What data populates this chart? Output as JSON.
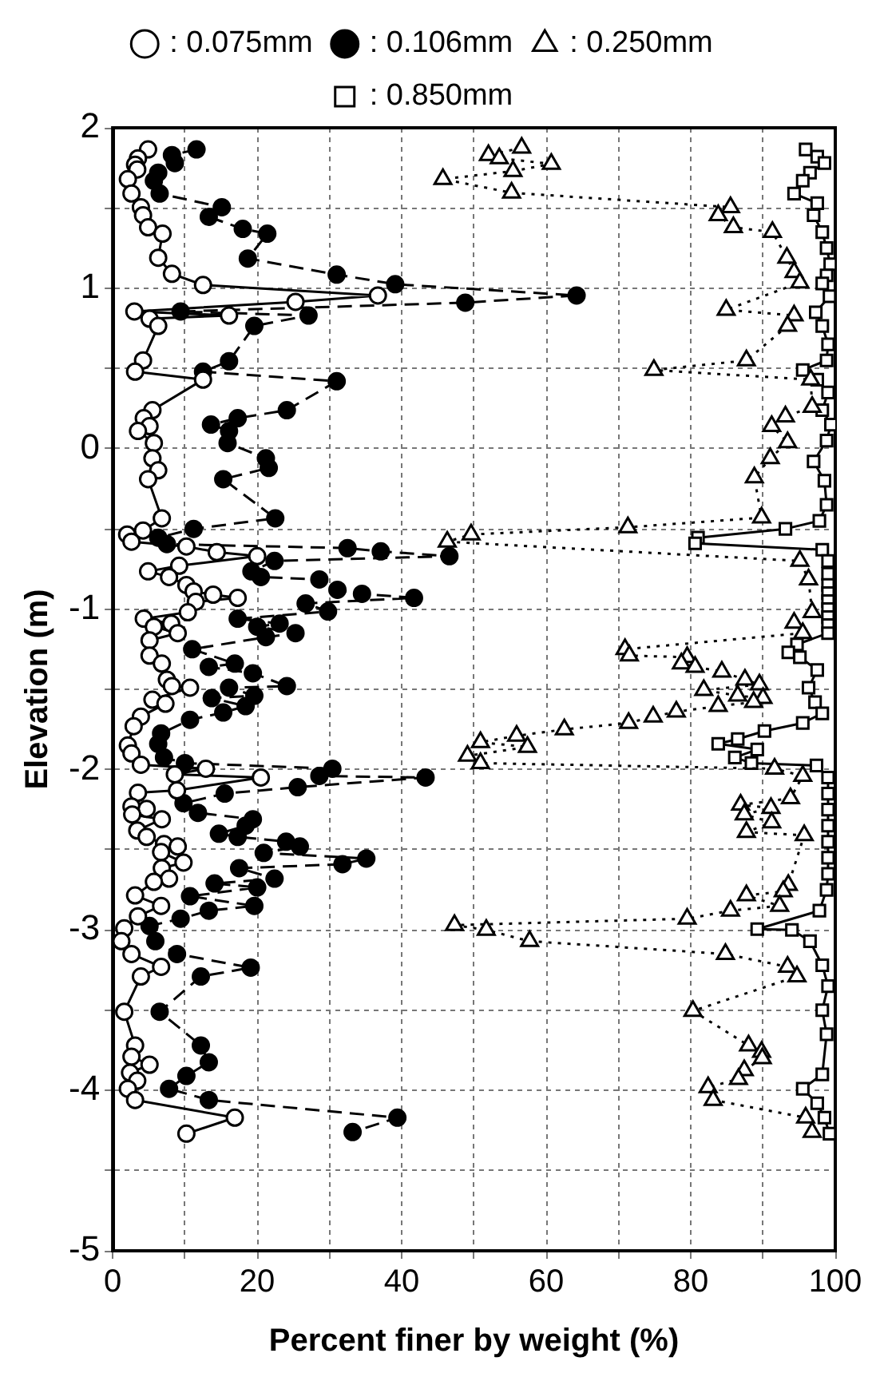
{
  "chart_data": {
    "type": "line",
    "xlabel": "Percent finer by weight (%)",
    "ylabel": "Elevation (m)",
    "xlim": [
      0,
      100
    ],
    "xticks": [
      0,
      {
        "value": 10,
        "label": null
      },
      20,
      {
        "value": 30,
        "label": null
      },
      40,
      {
        "value": 50,
        "label": null
      },
      60,
      {
        "value": 70,
        "label": null
      },
      80,
      {
        "value": 90,
        "label": null
      },
      100
    ],
    "ylim": [
      -5,
      2
    ],
    "yticks": [
      -5,
      {
        "value": -4.5,
        "label": null
      },
      -4,
      {
        "value": -3.5,
        "label": null
      },
      -3,
      {
        "value": -2.5,
        "label": null
      },
      -2,
      {
        "value": -1.5,
        "label": null
      },
      -1,
      {
        "value": -0.5,
        "label": null
      },
      0,
      {
        "value": 0.5,
        "label": null
      },
      1,
      {
        "value": 1.5,
        "label": null
      },
      2
    ],
    "grid": true,
    "legend": "top",
    "series": [
      {
        "name": ": 0.075mm",
        "color": "#ffffff",
        "marker": "circle",
        "line_style": "solid",
        "x": [
          4.9,
          3.5,
          3.1,
          3.4,
          2.1,
          2.6,
          3.9,
          4.2,
          4.9,
          6.9,
          6.3,
          8.2,
          12.5,
          36.7,
          25.3,
          3.0,
          16.1,
          5.1,
          6.3,
          4.2,
          3.1,
          12.5,
          5.5,
          4.3,
          5.1,
          3.5,
          5.7,
          5.5,
          6.3,
          4.9,
          6.8,
          4.2,
          2.0,
          2.6,
          10.2,
          14.4,
          20,
          9.2,
          4.9,
          7.8,
          10.2,
          11.2,
          13.9,
          17.3,
          11.5,
          10.4,
          4.3,
          8.1,
          5.7,
          9.0,
          5.1,
          5.1,
          6.8,
          7.5,
          8.2,
          10.7,
          5.5,
          7.3,
          3.9,
          2.9,
          2.1,
          2.6,
          3.9,
          12.9,
          8.6,
          20.5,
          8.9,
          3.5,
          2.6,
          4.7,
          2.7,
          6.8,
          3.4,
          4.7,
          7.1,
          9.0,
          6.7,
          9.8,
          6.8,
          7.8,
          5.7,
          3.1,
          6.7,
          3.5,
          1.6,
          1.2,
          2.6,
          6.7,
          3.9,
          1.6,
          3.1,
          2.6,
          5.1,
          2.4,
          3.4,
          2.1,
          3.1,
          16.9,
          10.2
        ],
        "values": [
          1.865,
          1.81,
          1.77,
          1.74,
          1.68,
          1.59,
          1.505,
          1.455,
          1.38,
          1.34,
          1.19,
          1.09,
          1.02,
          0.955,
          0.915,
          0.855,
          0.83,
          0.81,
          0.765,
          0.55,
          0.48,
          0.43,
          0.24,
          0.19,
          0.14,
          0.11,
          0.035,
          -0.06,
          -0.135,
          -0.19,
          -0.434,
          -0.51,
          -0.535,
          -0.58,
          -0.61,
          -0.645,
          -0.67,
          -0.73,
          -0.765,
          -0.8,
          -0.85,
          -0.89,
          -0.91,
          -0.93,
          -0.955,
          -1.02,
          -1.06,
          -1.09,
          -1.11,
          -1.15,
          -1.195,
          -1.29,
          -1.34,
          -1.44,
          -1.48,
          -1.49,
          -1.565,
          -1.59,
          -1.67,
          -1.73,
          -1.85,
          -1.9,
          -1.97,
          -1.995,
          -2.03,
          -2.05,
          -2.13,
          -2.145,
          -2.23,
          -2.245,
          -2.28,
          -2.31,
          -2.38,
          -2.42,
          -2.465,
          -2.48,
          -2.515,
          -2.58,
          -2.615,
          -2.68,
          -2.7,
          -2.785,
          -2.85,
          -2.915,
          -2.99,
          -3.07,
          -3.15,
          -3.23,
          -3.29,
          -3.51,
          -3.72,
          -3.79,
          -3.84,
          -3.89,
          -3.94,
          -3.99,
          -4.06,
          -4.17,
          -4.27
        ]
      },
      {
        "name": ": 0.106mm",
        "color": "#000000",
        "marker": "circle",
        "line_style": "dashed",
        "x": [
          11.6,
          8.2,
          8.6,
          6.3,
          5.7,
          6.5,
          15.1,
          13.3,
          18.0,
          21.4,
          18.7,
          31.0,
          39.1,
          64.2,
          48.8,
          9.4,
          27.1,
          19.6,
          16.1,
          12.5,
          31.0,
          24.1,
          17.3,
          13.6,
          16.1,
          15.9,
          21.2,
          21.6,
          15.3,
          22.5,
          11.2,
          6.3,
          7.5,
          32.5,
          37.1,
          46.6,
          22.4,
          19.2,
          20.5,
          28.6,
          31.1,
          34.5,
          41.7,
          26.7,
          29.8,
          17.3,
          23.1,
          20.0,
          25.3,
          21.2,
          11.0,
          16.9,
          13.3,
          19.4,
          24.1,
          16.1,
          19.6,
          13.7,
          18.4,
          15.3,
          10.7,
          6.7,
          6.3,
          7.1,
          10.0,
          30.4,
          28.6,
          43.3,
          25.6,
          15.5,
          9.8,
          11.8,
          19.4,
          18.4,
          14.7,
          17.3,
          24.0,
          25.9,
          20.9,
          35.1,
          31.8,
          17.5,
          22.4,
          14.1,
          20.0,
          10.7,
          19.6,
          13.3,
          9.4,
          5.1,
          5.9,
          8.9,
          19.1,
          12.2,
          6.5,
          12.2,
          13.3,
          10.2,
          7.8,
          13.3,
          39.4,
          33.2
        ],
        "values": [
          1.865,
          1.83,
          1.78,
          1.72,
          1.67,
          1.59,
          1.505,
          1.445,
          1.37,
          1.34,
          1.185,
          1.085,
          1.025,
          0.955,
          0.91,
          0.855,
          0.83,
          0.765,
          0.545,
          0.48,
          0.42,
          0.24,
          0.19,
          0.15,
          0.11,
          0.035,
          -0.06,
          -0.12,
          -0.19,
          -0.434,
          -0.5,
          -0.555,
          -0.595,
          -0.62,
          -0.64,
          -0.67,
          -0.7,
          -0.765,
          -0.8,
          -0.815,
          -0.88,
          -0.905,
          -0.93,
          -0.965,
          -1.015,
          -1.06,
          -1.09,
          -1.11,
          -1.15,
          -1.175,
          -1.25,
          -1.34,
          -1.36,
          -1.4,
          -1.48,
          -1.49,
          -1.54,
          -1.555,
          -1.605,
          -1.645,
          -1.69,
          -1.775,
          -1.84,
          -1.925,
          -1.96,
          -1.995,
          -2.04,
          -2.05,
          -2.11,
          -2.15,
          -2.21,
          -2.27,
          -2.31,
          -2.35,
          -2.4,
          -2.42,
          -2.45,
          -2.48,
          -2.52,
          -2.555,
          -2.59,
          -2.615,
          -2.68,
          -2.71,
          -2.735,
          -2.79,
          -2.85,
          -2.88,
          -2.93,
          -2.975,
          -3.07,
          -3.15,
          -3.235,
          -3.29,
          -3.51,
          -3.72,
          -3.825,
          -3.91,
          -3.99,
          -4.06,
          -4.17,
          -4.26
        ]
      },
      {
        "name": ": 0.250mm",
        "color": "#ffffff",
        "marker": "triangle",
        "line_style": "dotted",
        "x": [
          56.6,
          52.0,
          53.5,
          60.7,
          55.4,
          45.7,
          55.2,
          85.5,
          83.8,
          85.9,
          91.3,
          93.3,
          94.3,
          95.1,
          84.9,
          94.3,
          93.4,
          87.7,
          74.9,
          96.6,
          96.8,
          93.1,
          91.2,
          93.4,
          91.0,
          88.8,
          89.8,
          71.3,
          49.6,
          46.3,
          95.1,
          96.3,
          96.8,
          94.3,
          95.5,
          70.9,
          71.5,
          79.5,
          78.7,
          80.6,
          84.3,
          87.5,
          89.5,
          81.8,
          86.5,
          90.0,
          88.7,
          83.8,
          78.0,
          74.8,
          71.4,
          62.5,
          55.9,
          50.9,
          57.4,
          49.1,
          50.9,
          91.6,
          95.5,
          93.8,
          86.9,
          91.1,
          87.4,
          91.2,
          87.7,
          95.7,
          93.5,
          92.8,
          87.7,
          92.3,
          85.5,
          79.5,
          47.3,
          51.7,
          57.7,
          84.8,
          93.4,
          94.7,
          80.3,
          88.0,
          89.8,
          89.9,
          87.4,
          86.6,
          82.4,
          83.1,
          95.9,
          96.8
        ],
        "values": [
          1.875,
          1.83,
          1.81,
          1.775,
          1.73,
          1.68,
          1.595,
          1.505,
          1.455,
          1.38,
          1.35,
          1.19,
          1.1,
          1.035,
          0.865,
          0.83,
          0.765,
          0.55,
          0.49,
          0.43,
          0.26,
          0.2,
          0.14,
          0.04,
          -0.06,
          -0.18,
          -0.43,
          -0.49,
          -0.535,
          -0.58,
          -0.7,
          -0.815,
          -1.02,
          -1.085,
          -1.15,
          -1.25,
          -1.29,
          -1.3,
          -1.34,
          -1.36,
          -1.39,
          -1.44,
          -1.47,
          -1.505,
          -1.54,
          -1.555,
          -1.58,
          -1.605,
          -1.64,
          -1.67,
          -1.71,
          -1.75,
          -1.79,
          -1.83,
          -1.86,
          -1.915,
          -1.96,
          -1.995,
          -2.04,
          -2.18,
          -2.22,
          -2.24,
          -2.28,
          -2.33,
          -2.39,
          -2.41,
          -2.72,
          -2.76,
          -2.785,
          -2.85,
          -2.88,
          -2.93,
          -2.97,
          -3.0,
          -3.07,
          -3.15,
          -3.23,
          -3.29,
          -3.505,
          -3.72,
          -3.76,
          -3.8,
          -3.875,
          -3.93,
          -3.98,
          -4.06,
          -4.17,
          -4.26
        ]
      },
      {
        "name": ": 0.850mm",
        "color": "#ffffff",
        "marker": "square",
        "line_style": "solid",
        "x": [
          95.9,
          97.5,
          98.5,
          96.5,
          95.5,
          94.3,
          97.5,
          97.0,
          98.2,
          98.8,
          99.3,
          98.8,
          98.2,
          99.2,
          97.3,
          98.2,
          99,
          98.8,
          95.5,
          97.5,
          99,
          98.2,
          99.4,
          98.8,
          97,
          98.5,
          98.8,
          97.8,
          93.1,
          81.0,
          80.6,
          98.2,
          99.0,
          99.0,
          99.0,
          99.0,
          99.0,
          99.0,
          99.0,
          99.0,
          99.0,
          94.7,
          93.5,
          95.1,
          97.5,
          96.3,
          97.2,
          98.2,
          95.5,
          90.2,
          86.5,
          83.8,
          89.2,
          86.1,
          88.4,
          97.4,
          99.0,
          99.0,
          99.0,
          99.0,
          99.0,
          99.0,
          99.0,
          98.8,
          97.8,
          89.2,
          94.0,
          96.5,
          98.2,
          99,
          98.2,
          98.8,
          98.2,
          95.5,
          97.5,
          98.5,
          99.2
        ],
        "values": [
          1.865,
          1.82,
          1.78,
          1.72,
          1.67,
          1.59,
          1.53,
          1.455,
          1.35,
          1.25,
          1.15,
          1.08,
          1.03,
          0.95,
          0.85,
          0.765,
          0.65,
          0.55,
          0.49,
          0.43,
          0.35,
          0.24,
          0.15,
          0.05,
          -0.08,
          -0.2,
          -0.35,
          -0.45,
          -0.5,
          -0.555,
          -0.59,
          -0.63,
          -0.7,
          -0.78,
          -0.85,
          -0.9,
          -0.95,
          -1.0,
          -1.05,
          -1.1,
          -1.15,
          -1.22,
          -1.27,
          -1.3,
          -1.38,
          -1.49,
          -1.58,
          -1.65,
          -1.71,
          -1.76,
          -1.81,
          -1.84,
          -1.875,
          -1.925,
          -1.96,
          -1.975,
          -2.05,
          -2.15,
          -2.25,
          -2.35,
          -2.45,
          -2.55,
          -2.65,
          -2.75,
          -2.88,
          -2.995,
          -3.0,
          -3.07,
          -3.22,
          -3.35,
          -3.5,
          -3.65,
          -3.9,
          -3.99,
          -4.08,
          -4.17,
          -4.27
        ]
      }
    ]
  }
}
